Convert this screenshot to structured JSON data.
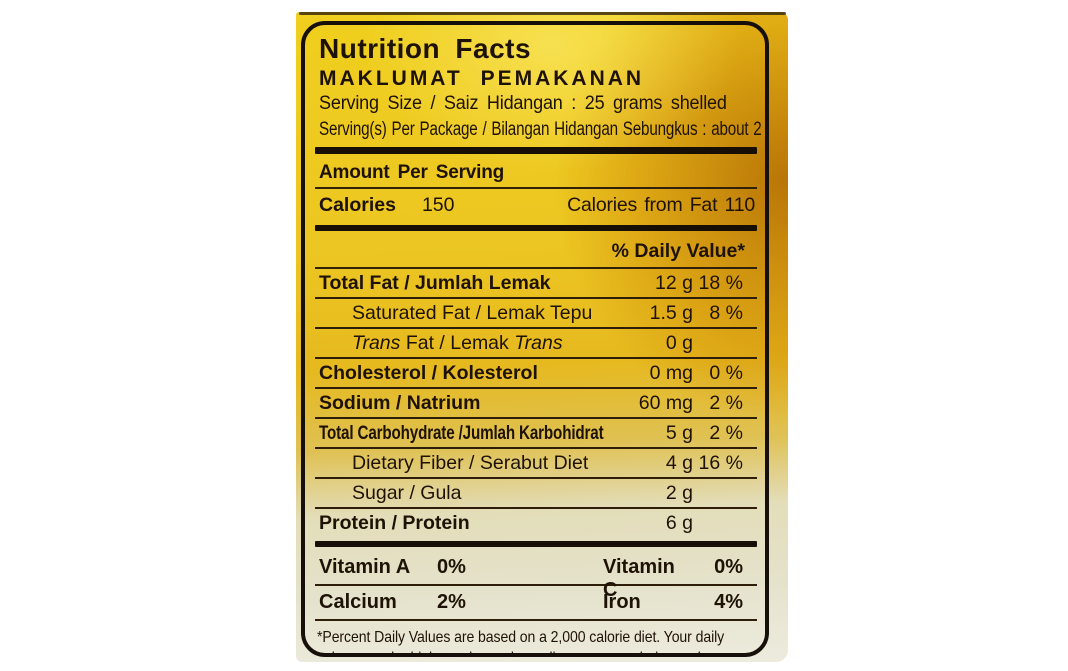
{
  "colors": {
    "package_yellow": "#f0cf1e",
    "package_amber": "#cd8506",
    "label_cream": "#e5e2cc",
    "ink": "#1e1206",
    "border_black": "#17100a"
  },
  "label": {
    "title": "Nutrition Facts",
    "subtitle": "MAKLUMAT PEMAKANAN",
    "serving_size": "Serving Size / Saiz Hidangan : 25 grams shelled",
    "servings_per_package": "Serving(s) Per Package / Bilangan Hidangan Sebungkus : about 2",
    "amount_per_serving": "Amount Per Serving",
    "calories_label": "Calories",
    "calories_value": "150",
    "calories_from_fat": "Calories from Fat 110",
    "daily_value_header": "% Daily Value*",
    "nutrients": [
      {
        "name": "Total Fat / Jumlah Lemak",
        "bold": true,
        "amount": "12 g",
        "dv": "18 %"
      },
      {
        "name": "Saturated Fat / Lemak Tepu",
        "indent": true,
        "amount": "1.5 g",
        "dv": "8 %"
      },
      {
        "name": "Trans Fat / Lemak Trans",
        "indent": true,
        "amount": "0 g",
        "dv": "",
        "name_parts": [
          {
            "text": "Trans",
            "italic": true
          },
          {
            "text": " Fat / Lemak ",
            "italic": false
          },
          {
            "text": "Trans",
            "italic": true
          }
        ]
      },
      {
        "name": "Cholesterol / Kolesterol",
        "bold": true,
        "amount": "0 mg",
        "dv": "0 %"
      },
      {
        "name": "Sodium / Natrium",
        "bold": true,
        "amount": "60 mg",
        "dv": "2 %"
      },
      {
        "name": "Total Carbohydrate /Jumlah Karbohidrat",
        "bold": true,
        "condense": true,
        "amount": "5 g",
        "dv": "2 %"
      },
      {
        "name": "Dietary Fiber / Serabut Diet",
        "indent": true,
        "amount": "4 g",
        "dv": "16 %"
      },
      {
        "name": "Sugar / Gula",
        "indent": true,
        "amount": "2 g",
        "dv": ""
      },
      {
        "name": "Protein / Protein",
        "bold": true,
        "amount": "6 g",
        "dv": "",
        "last": true
      }
    ],
    "vitamins": [
      {
        "left_name": "Vitamin A",
        "left_value": "0%",
        "right_name": "Vitamin C",
        "right_value": "0%"
      },
      {
        "left_name": "Calcium",
        "left_value": "2%",
        "right_name": "Iron",
        "right_value": "4%"
      }
    ],
    "footnote_line1": "*Percent Daily Values are based on a 2,000 calorie diet. Your daily",
    "footnote_line2": "values may be higher or lower depending on your calorie needs."
  }
}
